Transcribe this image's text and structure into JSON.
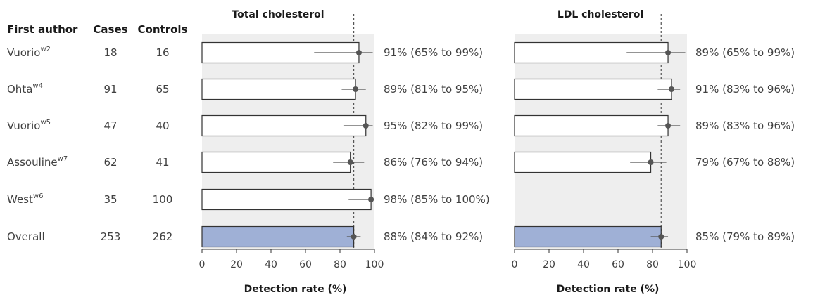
{
  "columns": {
    "author": "First author",
    "cases": "Cases",
    "controls": "Controls"
  },
  "studies": [
    {
      "author": "Vuorio",
      "ref": "w2",
      "cases": "18",
      "controls": "16"
    },
    {
      "author": "Ohta",
      "ref": "w4",
      "cases": "91",
      "controls": "65"
    },
    {
      "author": "Vuorio",
      "ref": "w5",
      "cases": "47",
      "controls": "40"
    },
    {
      "author": "Assouline",
      "ref": "w7",
      "cases": "62",
      "controls": "41"
    },
    {
      "author": "West",
      "ref": "w6",
      "cases": "35",
      "controls": "100"
    },
    {
      "author": "Overall",
      "ref": "",
      "cases": "253",
      "controls": "262"
    }
  ],
  "chart_data": [
    {
      "type": "bar",
      "title": "Total cholesterol",
      "xlabel": "Detection rate (%)",
      "xlim": [
        0,
        100
      ],
      "xticks": [
        "0",
        "20",
        "40",
        "60",
        "80",
        "100"
      ],
      "reference_line": 88,
      "categories": [
        "Vuorio w2",
        "Ohta w4",
        "Vuorio w5",
        "Assouline w7",
        "West w6",
        "Overall"
      ],
      "values": [
        91,
        89,
        95,
        86,
        98,
        88
      ],
      "ci_low": [
        65,
        81,
        82,
        76,
        85,
        84
      ],
      "ci_high": [
        99,
        95,
        99,
        94,
        100,
        92
      ],
      "labels": [
        "91% (65% to 99%)",
        "89% (81% to 95%)",
        "95% (82% to 99%)",
        "86% (76% to 94%)",
        "98% (85% to 100%)",
        "88% (84% to 92%)"
      ]
    },
    {
      "type": "bar",
      "title": "LDL cholesterol",
      "xlabel": "Detection rate (%)",
      "xlim": [
        0,
        100
      ],
      "xticks": [
        "0",
        "20",
        "40",
        "60",
        "80",
        "100"
      ],
      "reference_line": 85,
      "categories": [
        "Vuorio w2",
        "Ohta w4",
        "Vuorio w5",
        "Assouline w7",
        "West w6",
        "Overall"
      ],
      "values": [
        89,
        91,
        89,
        79,
        null,
        85
      ],
      "ci_low": [
        65,
        83,
        83,
        67,
        null,
        79
      ],
      "ci_high": [
        99,
        96,
        96,
        88,
        null,
        89
      ],
      "labels": [
        "89% (65% to 99%)",
        "91% (83% to 96%)",
        "89% (83% to 96%)",
        "79% (67% to 88%)",
        "",
        "85% (79% to 89%)"
      ]
    }
  ],
  "colors": {
    "panel_bg": "#eeeeee",
    "bar_fill": "#ffffff",
    "overall_fill": "#9fb0d6",
    "bar_stroke": "#333333",
    "point": "#555555"
  }
}
